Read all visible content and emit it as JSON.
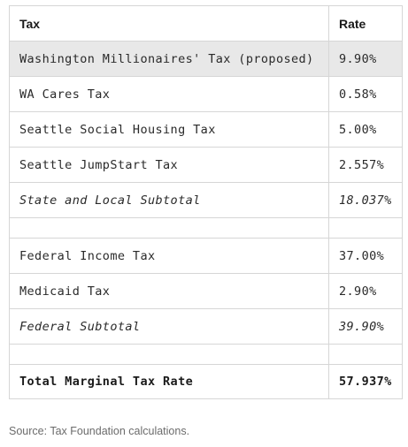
{
  "table": {
    "headers": {
      "tax": "Tax",
      "rate": "Rate"
    },
    "rows": [
      {
        "tax": "Washington Millionaires' Tax (proposed)",
        "rate": "9.90%"
      },
      {
        "tax": "WA Cares Tax",
        "rate": "0.58%"
      },
      {
        "tax": "Seattle Social Housing Tax",
        "rate": "5.00%"
      },
      {
        "tax": "Seattle JumpStart Tax",
        "rate": "2.557%"
      },
      {
        "tax": "State and Local Subtotal",
        "rate": "18.037%"
      },
      {
        "tax": "",
        "rate": ""
      },
      {
        "tax": "Federal Income Tax",
        "rate": "37.00%"
      },
      {
        "tax": "Medicaid Tax",
        "rate": "2.90%"
      },
      {
        "tax": "Federal Subtotal",
        "rate": "39.90%"
      },
      {
        "tax": "",
        "rate": ""
      },
      {
        "tax": "Total Marginal Tax Rate",
        "rate": "57.937%"
      }
    ]
  },
  "source": "Source: Tax Foundation calculations.",
  "colors": {
    "highlight_row": "#e8e8e8",
    "border": "#d6d6d6",
    "source_text": "#6b6b6b"
  }
}
